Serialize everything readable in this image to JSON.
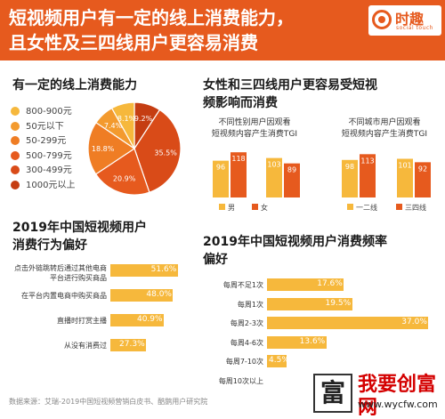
{
  "header": {
    "title_line1": "短视频用户有一定的线上消费能力，",
    "title_line2": "且女性及三四线用户更容易消费",
    "logo_cn": "时趣",
    "logo_en": "social touch"
  },
  "section1": {
    "title": "有一定的线上消费能力"
  },
  "section2": {
    "title_line1": "女性和三四线用户更容易受短视",
    "title_line2": "频影响而消费",
    "chart_a_sub1": "不同性别用户因观看",
    "chart_a_sub2": "短视频内容产生消费TGI",
    "chart_b_sub1": "不同城市用户因观看",
    "chart_b_sub2": "短视频内容产生消费TGI"
  },
  "section3": {
    "title_line1": "2019年中国短视频用户",
    "title_line2": "消费行为偏好"
  },
  "section4": {
    "title_line1": "2019年中国短视频用户消费频率",
    "title_line2": "偏好"
  },
  "footer": {
    "source": "数据来源：艾瑞-2019中国短视频营销白皮书、酷鹅用户研究院"
  },
  "watermark": {
    "char": "富",
    "title": "我要创富网",
    "url": "www.wycfw.com"
  },
  "colors": {
    "brand": "#e65a1e",
    "light": "#f6b83c",
    "pie": [
      "#f6b83c",
      "#f39a2e",
      "#ef7d24",
      "#e65a1e",
      "#d94b18",
      "#c53d12"
    ]
  },
  "chart_data": [
    {
      "type": "pie",
      "title": "有一定的线上消费能力",
      "categories": [
        "800-900元",
        "50元以下",
        "50-299元",
        "500-799元",
        "300-499元",
        "1000元以上"
      ],
      "values": [
        8.1,
        7.4,
        18.8,
        20.9,
        35.5,
        9.2
      ],
      "labels": [
        "8.1%",
        "7.4%",
        "18.8%",
        "20.9%",
        "35.5%",
        "9.2%"
      ],
      "legend_position": "left"
    },
    {
      "type": "bar",
      "subtitle": "不同性别用户因观看短视频内容产生消费TGI",
      "categories": [
        "",
        ""
      ],
      "series": [
        {
          "name": "男",
          "values": [
            96,
            103
          ]
        },
        {
          "name": "女",
          "values": [
            118,
            89
          ]
        }
      ]
    },
    {
      "type": "bar",
      "subtitle": "不同城市用户因观看短视频内容产生消费TGI",
      "categories": [
        "",
        ""
      ],
      "series": [
        {
          "name": "一二线",
          "values": [
            98,
            101
          ]
        },
        {
          "name": "三四线",
          "values": [
            113,
            92
          ]
        }
      ]
    },
    {
      "type": "bar",
      "orientation": "horizontal",
      "title": "2019年中国短视频用户消费行为偏好",
      "categories": [
        "点击外链跳转后通过其他电商平台进行购买商品",
        "在平台内置电商中购买商品",
        "直播时打赏主播",
        "从没有消费过"
      ],
      "values": [
        51.6,
        48.0,
        40.9,
        27.3
      ],
      "labels": [
        "51.6%",
        "48.0%",
        "40.9%",
        "27.3%"
      ],
      "xlim": [
        0,
        60
      ]
    },
    {
      "type": "bar",
      "orientation": "horizontal",
      "title": "2019年中国短视频用户消费频率偏好",
      "categories": [
        "每周不足1次",
        "每周1次",
        "每周2-3次",
        "每周4-6次",
        "每周7-10次",
        "每周10次以上"
      ],
      "values": [
        17.6,
        19.5,
        37.0,
        13.6,
        4.5,
        0
      ],
      "labels": [
        "17.6%",
        "19.5%",
        "37.0%",
        "13.6%",
        "4.5%",
        ""
      ],
      "xlim": [
        0,
        40
      ]
    }
  ]
}
